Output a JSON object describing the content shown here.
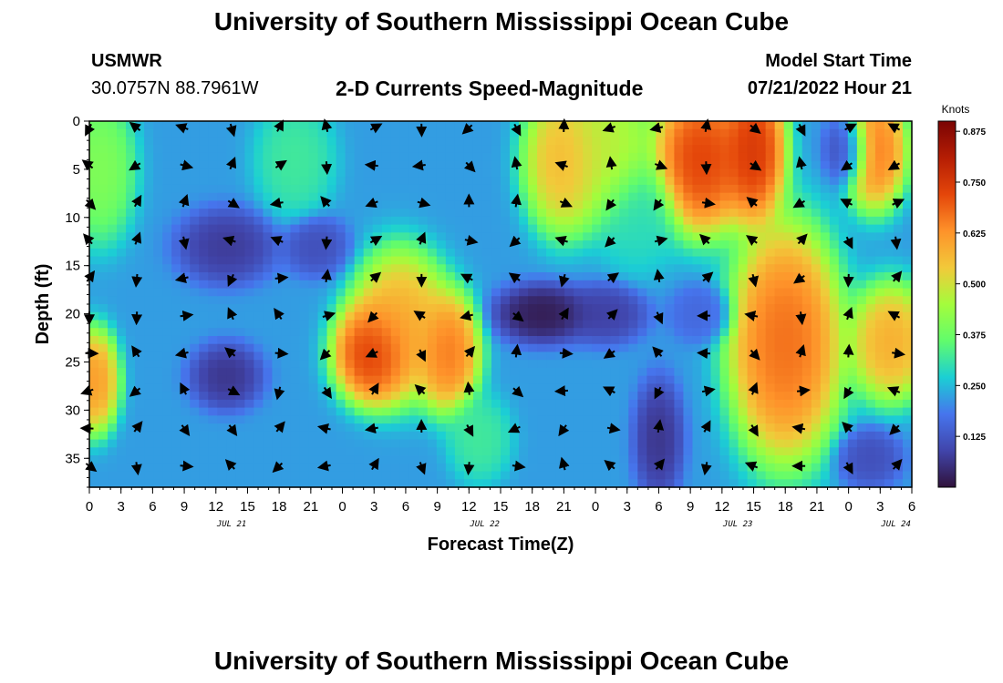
{
  "page": {
    "title": "University of Southern Mississippi Ocean Cube",
    "title_repeat": "University of Southern Mississippi Ocean Cube",
    "station_id": "USMWR",
    "station_coords": "30.0757N  88.7961W",
    "subtitle": "2-D Currents Speed-Magnitude",
    "model_start_label": "Model Start Time",
    "model_start_value": "07/21/2022 Hour 21"
  },
  "chart_data": {
    "type": "heatmap",
    "title": "2-D Currents Speed-Magnitude",
    "xlabel": "Forecast Time(Z)",
    "ylabel": "Depth (ft)",
    "colorbar_label": "Knots",
    "colorbar_ticks": [
      "0.125",
      "0.250",
      "0.375",
      "0.500",
      "0.625",
      "0.750",
      "0.875"
    ],
    "colorbar_values": [
      0.125,
      0.25,
      0.375,
      0.5,
      0.625,
      0.75,
      0.875
    ],
    "colorbar_range": [
      0,
      0.9
    ],
    "x_tick_labels": [
      "0",
      "3",
      "6",
      "9",
      "12",
      "15",
      "18",
      "21",
      "0",
      "3",
      "6",
      "9",
      "12",
      "15",
      "18",
      "21",
      "0",
      "3",
      "6",
      "9",
      "12",
      "15",
      "18",
      "21",
      "0",
      "3",
      "6"
    ],
    "date_labels": [
      {
        "label": "JUL 21",
        "hour_index": 4.5
      },
      {
        "label": "JUL 22",
        "hour_index": 12.5
      },
      {
        "label": "JUL 23",
        "hour_index": 20.5
      },
      {
        "label": "JUL 24",
        "hour_index": 25.5
      }
    ],
    "y_tick_labels": [
      "0",
      "5",
      "10",
      "15",
      "20",
      "25",
      "30",
      "35"
    ],
    "y_tick_values": [
      0,
      5,
      10,
      15,
      20,
      25,
      30,
      35
    ],
    "ylim": [
      0,
      38
    ],
    "x_range_hours": [
      0,
      78
    ],
    "hotspots": [
      {
        "t": 1,
        "d": 5,
        "v": 0.42,
        "r": 2.2,
        "rd": 5
      },
      {
        "t": 0.5,
        "d": 27,
        "v": 0.65,
        "r": 1.5,
        "rd": 3.5
      },
      {
        "t": 13,
        "d": 13,
        "v": 0.06,
        "r": 3,
        "rd": 2.5
      },
      {
        "t": 13,
        "d": 26.5,
        "v": 0.05,
        "r": 2.2,
        "rd": 2.2
      },
      {
        "t": 21.5,
        "d": 13,
        "v": 0.1,
        "r": 2,
        "rd": 2
      },
      {
        "t": 19.5,
        "d": 4,
        "v": 0.33,
        "r": 2.5,
        "rd": 4
      },
      {
        "t": 29.5,
        "d": 21,
        "v": 0.62,
        "r": 3,
        "rd": 5
      },
      {
        "t": 27,
        "d": 24,
        "v": 0.8,
        "r": 2.5,
        "rd": 3.5
      },
      {
        "t": 34,
        "d": 24,
        "v": 0.7,
        "r": 2,
        "rd": 4
      },
      {
        "t": 33,
        "d": 1,
        "v": 0.22,
        "r": 2.5,
        "rd": 5
      },
      {
        "t": 45,
        "d": 4,
        "v": 0.6,
        "r": 2.5,
        "rd": 5
      },
      {
        "t": 49,
        "d": 3,
        "v": 0.5,
        "r": 3,
        "rd": 5
      },
      {
        "t": 43,
        "d": 20,
        "v": 0.0,
        "r": 3,
        "rd": 2
      },
      {
        "t": 49,
        "d": 20,
        "v": 0.07,
        "r": 2.5,
        "rd": 2
      },
      {
        "t": 54,
        "d": 33,
        "v": 0.05,
        "r": 1.5,
        "rd": 4
      },
      {
        "t": 52,
        "d": 10,
        "v": 0.3,
        "r": 2.5,
        "rd": 4
      },
      {
        "t": 58,
        "d": 4,
        "v": 0.78,
        "r": 3,
        "rd": 5
      },
      {
        "t": 63,
        "d": 3,
        "v": 0.8,
        "r": 2,
        "rd": 5
      },
      {
        "t": 66,
        "d": 23,
        "v": 0.72,
        "r": 3.5,
        "rd": 8
      },
      {
        "t": 72,
        "d": 3,
        "v": 0.08,
        "r": 1.5,
        "rd": 2.5
      },
      {
        "t": 74.5,
        "d": 3,
        "v": 0.7,
        "r": 2,
        "rd": 4
      },
      {
        "t": 76,
        "d": 23,
        "v": 0.62,
        "r": 2.5,
        "rd": 4
      },
      {
        "t": 74,
        "d": 35,
        "v": 0.1,
        "r": 2,
        "rd": 2
      },
      {
        "t": 58,
        "d": 20,
        "v": 0.15,
        "r": 2,
        "rd": 2
      },
      {
        "t": 37,
        "d": 33,
        "v": 0.33,
        "r": 2,
        "rd": 3
      }
    ]
  }
}
